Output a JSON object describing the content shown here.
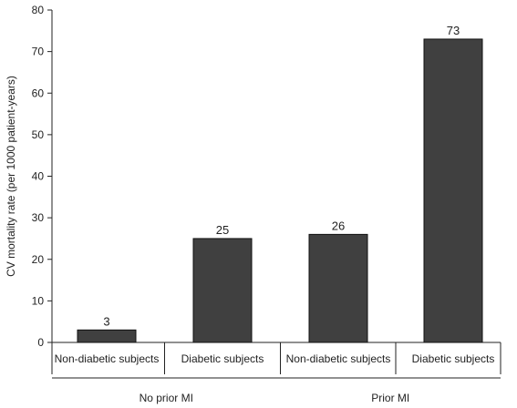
{
  "chart_data": {
    "type": "bar",
    "title": "",
    "xlabel": "",
    "ylabel": "CV mortality rate (per 1000 patient-years)",
    "ylim": [
      0,
      80
    ],
    "yticks": [
      0,
      10,
      20,
      30,
      40,
      50,
      60,
      70,
      80
    ],
    "grid": false,
    "legend": "none",
    "bar_color": "#404040",
    "categories": [
      "Non-diabetic subjects",
      "Diabetic subjects",
      "Non-diabetic subjects",
      "Diabetic subjects"
    ],
    "groups": [
      {
        "label": "No prior MI",
        "category_indices": [
          0,
          1
        ]
      },
      {
        "label": "Prior MI",
        "category_indices": [
          2,
          3
        ]
      }
    ],
    "values": [
      3,
      25,
      26,
      73
    ],
    "data_labels": [
      "3",
      "25",
      "26",
      "73"
    ]
  }
}
